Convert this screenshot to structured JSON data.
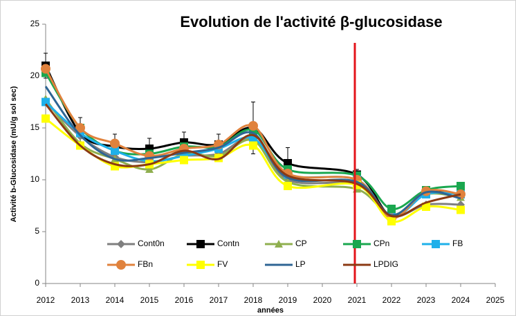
{
  "chart_data": {
    "type": "line",
    "title": "Evolution de l'activité β-glucosidase",
    "x_label": "années",
    "y_label": "Activité b-Glucosidase (mU/g sol sec)",
    "x": [
      2012,
      2013,
      2014,
      2015,
      2016,
      2017,
      2018,
      2019,
      2021,
      2022,
      2023,
      2024
    ],
    "xlim": [
      2012,
      2025
    ],
    "xticks": [
      2012,
      2013,
      2014,
      2015,
      2016,
      2017,
      2018,
      2019,
      2020,
      2021,
      2022,
      2023,
      2024,
      2025
    ],
    "ylim": [
      0,
      25
    ],
    "yticks": [
      0,
      5,
      10,
      15,
      20,
      25
    ],
    "grid": false,
    "legend": "bottom",
    "reference_line": {
      "x": 2020.94,
      "color": "#e3141b"
    },
    "series": [
      {
        "name": "Cont0n",
        "color": "#7f7f7f",
        "marker": "diamond",
        "values": [
          17.5,
          14.2,
          12.2,
          11.7,
          12.3,
          12.5,
          14.0,
          10.0,
          9.5,
          6.5,
          7.6,
          7.6
        ]
      },
      {
        "name": "Contn",
        "color": "#000000",
        "marker": "square",
        "values": [
          21.0,
          14.5,
          13.2,
          13.0,
          13.6,
          13.4,
          15.0,
          11.6,
          10.5,
          6.5,
          8.8,
          8.6
        ],
        "errors": [
          1.2,
          1.5,
          1.2,
          1.0,
          1.0,
          1.0,
          2.5,
          1.5,
          0.5,
          0.3,
          0.4,
          0.4
        ]
      },
      {
        "name": "CP",
        "color": "#8faf4f",
        "marker": "triangle",
        "values": [
          17.8,
          13.5,
          12.0,
          11.0,
          12.5,
          12.3,
          13.8,
          9.8,
          9.1,
          6.6,
          8.6,
          8.3
        ]
      },
      {
        "name": "CPn",
        "color": "#1aa74f",
        "marker": "square",
        "values": [
          20.3,
          15.0,
          12.8,
          12.5,
          13.2,
          13.2,
          14.8,
          11.0,
          10.4,
          7.2,
          9.0,
          9.4
        ]
      },
      {
        "name": "FB",
        "color": "#1fb0ea",
        "marker": "square",
        "values": [
          17.5,
          14.5,
          12.8,
          11.8,
          12.3,
          13.0,
          14.0,
          10.5,
          10.0,
          6.4,
          8.6,
          8.6
        ]
      },
      {
        "name": "FBn",
        "color": "#e0823d",
        "marker": "circle",
        "values": [
          20.7,
          15.0,
          13.5,
          12.3,
          13.0,
          13.4,
          15.2,
          10.6,
          10.0,
          6.3,
          8.9,
          8.6
        ]
      },
      {
        "name": "FV",
        "color": "#ffff00",
        "marker": "square",
        "values": [
          15.9,
          13.3,
          11.3,
          11.5,
          11.9,
          12.1,
          13.3,
          9.4,
          9.5,
          6.0,
          7.4,
          7.1
        ]
      },
      {
        "name": "LP",
        "color": "#2e6594",
        "marker": "none",
        "values": [
          19.0,
          14.3,
          12.0,
          12.1,
          12.6,
          13.1,
          14.5,
          10.2,
          9.8,
          6.6,
          8.8,
          8.2
        ]
      },
      {
        "name": "LPDIG",
        "color": "#8b3a13",
        "marker": "none",
        "values": [
          17.3,
          13.3,
          11.5,
          11.5,
          12.8,
          12.0,
          14.3,
          10.4,
          9.6,
          6.5,
          7.8,
          8.6
        ]
      }
    ]
  }
}
